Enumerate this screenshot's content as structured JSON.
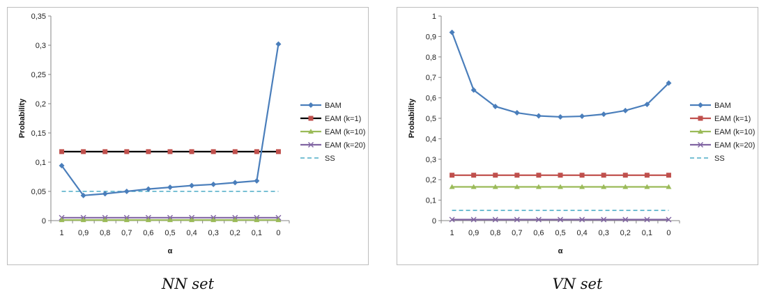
{
  "charts": [
    {
      "caption": "NN set",
      "chart_data": {
        "type": "line",
        "xlabel": "α",
        "ylabel": "Probability",
        "categories": [
          "1",
          "0,9",
          "0,8",
          "0,7",
          "0,6",
          "0,5",
          "0,4",
          "0,3",
          "0,2",
          "0,1",
          "0"
        ],
        "ylim": [
          0,
          0.35
        ],
        "yticks": [
          0,
          0.05,
          0.1,
          0.15,
          0.2,
          0.25,
          0.3,
          0.35
        ],
        "ytick_labels": [
          "0",
          "0,05",
          "0,1",
          "0,15",
          "0,2",
          "0,25",
          "0,3",
          "0,35"
        ],
        "grid": false,
        "legend_position": "right",
        "series": [
          {
            "name": "BAM",
            "color": "#4a7ebb",
            "marker": "diamond",
            "style": "solid",
            "values": [
              0.094,
              0.043,
              0.046,
              0.05,
              0.054,
              0.057,
              0.06,
              0.062,
              0.065,
              0.068,
              0.302
            ]
          },
          {
            "name": "EAM (k=1)",
            "color": "#c0504d",
            "line_color": "#000000",
            "marker": "square",
            "style": "solid",
            "values": [
              0.118,
              0.118,
              0.118,
              0.118,
              0.118,
              0.118,
              0.118,
              0.118,
              0.118,
              0.118,
              0.118
            ]
          },
          {
            "name": "EAM (k=10)",
            "color": "#9bbb59",
            "marker": "triangle",
            "style": "solid",
            "values": [
              0.001,
              0.001,
              0.001,
              0.001,
              0.001,
              0.001,
              0.001,
              0.001,
              0.001,
              0.001,
              0.001
            ]
          },
          {
            "name": "EAM (k=20)",
            "color": "#8064a2",
            "marker": "x",
            "style": "solid",
            "values": [
              0.005,
              0.005,
              0.005,
              0.005,
              0.005,
              0.005,
              0.005,
              0.005,
              0.005,
              0.005,
              0.005
            ]
          },
          {
            "name": "SS",
            "color": "#4bacc6",
            "marker": "none",
            "style": "dashed",
            "values": [
              0.05,
              0.05,
              0.05,
              0.05,
              0.05,
              0.05,
              0.05,
              0.05,
              0.05,
              0.05,
              0.05
            ]
          }
        ]
      }
    },
    {
      "caption": "VN set",
      "chart_data": {
        "type": "line",
        "xlabel": "α",
        "ylabel": "Probability",
        "categories": [
          "1",
          "0,9",
          "0,8",
          "0,7",
          "0,6",
          "0,5",
          "0,4",
          "0,3",
          "0,2",
          "0,1",
          "0"
        ],
        "ylim": [
          0,
          1
        ],
        "yticks": [
          0,
          0.1,
          0.2,
          0.3,
          0.4,
          0.5,
          0.6,
          0.7,
          0.8,
          0.9,
          1
        ],
        "ytick_labels": [
          "0",
          "0,1",
          "0,2",
          "0,3",
          "0,4",
          "0,5",
          "0,6",
          "0,7",
          "0,8",
          "0,9",
          "1"
        ],
        "grid": false,
        "legend_position": "right",
        "series": [
          {
            "name": "BAM",
            "color": "#4a7ebb",
            "marker": "diamond",
            "style": "solid",
            "values": [
              0.92,
              0.638,
              0.558,
              0.527,
              0.512,
              0.507,
              0.51,
              0.52,
              0.538,
              0.568,
              0.672
            ]
          },
          {
            "name": "EAM (k=1)",
            "color": "#c0504d",
            "line_color": "#c0504d",
            "marker": "square",
            "style": "solid",
            "values": [
              0.222,
              0.222,
              0.222,
              0.222,
              0.222,
              0.222,
              0.222,
              0.222,
              0.222,
              0.222,
              0.222
            ]
          },
          {
            "name": "EAM (k=10)",
            "color": "#9bbb59",
            "marker": "triangle",
            "style": "solid",
            "values": [
              0.165,
              0.165,
              0.165,
              0.165,
              0.165,
              0.165,
              0.165,
              0.165,
              0.165,
              0.165,
              0.165
            ]
          },
          {
            "name": "EAM (k=20)",
            "color": "#8064a2",
            "marker": "x",
            "style": "solid",
            "values": [
              0.005,
              0.005,
              0.005,
              0.005,
              0.005,
              0.005,
              0.005,
              0.005,
              0.005,
              0.005,
              0.005
            ]
          },
          {
            "name": "SS",
            "color": "#4bacc6",
            "marker": "none",
            "style": "dashed",
            "values": [
              0.05,
              0.05,
              0.05,
              0.05,
              0.05,
              0.05,
              0.05,
              0.05,
              0.05,
              0.05,
              0.05
            ]
          }
        ]
      }
    }
  ]
}
